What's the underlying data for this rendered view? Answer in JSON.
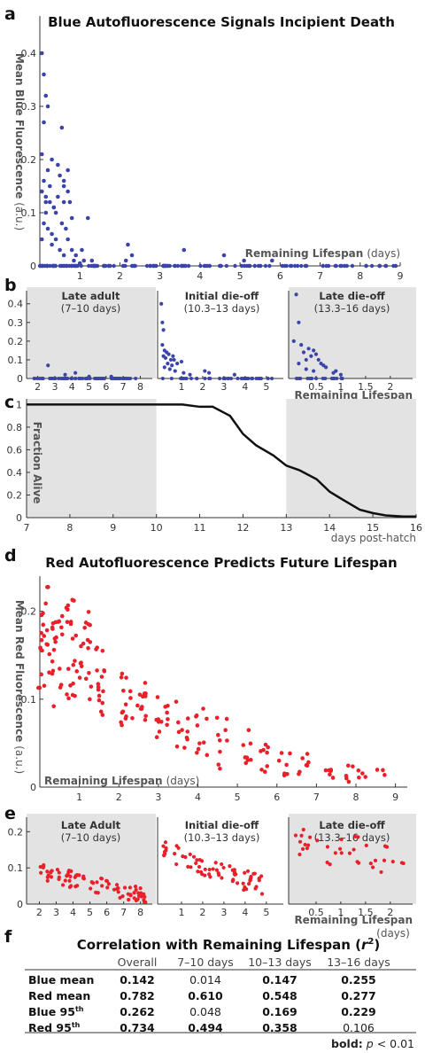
{
  "panel_a": {
    "letter": "a",
    "title": "Blue Autofluorescence Signals Incipient Death",
    "ylabel_bold": "Mean Blue Fluorescence",
    "ylabel_unit": "(a.u.)",
    "xlabel_bold": "Remaining Lifespan",
    "xlabel_unit": "(days)"
  },
  "panel_b": {
    "letter": "b",
    "sub1_title": "Late adult",
    "sub1_range": "(7–10 days)",
    "sub2_title": "Initial die-off",
    "sub2_range": "(10.3–13 days)",
    "sub3_title": "Late die-off",
    "sub3_range": "(13.3–16 days)",
    "xlabel_bold": "Remaining Lifespan",
    "xlabel_unit": "(days)"
  },
  "panel_c": {
    "letter": "c",
    "ylabel": "Fraction Alive",
    "xlabel": "days post-hatch"
  },
  "panel_d": {
    "letter": "d",
    "title": "Red Autofluorescence Predicts Future Lifespan",
    "ylabel_bold": "Mean Red Fluorescence",
    "ylabel_unit": "(a.u.)",
    "xlabel_bold": "Remaining Lifespan",
    "xlabel_unit": "(days)"
  },
  "panel_e": {
    "letter": "e",
    "sub1_title": "Late Adult",
    "sub1_range": "(7–10 days)",
    "sub2_title": "Initial die-off",
    "sub2_range": "(10.3–13 days)",
    "sub3_title": "Late die-off",
    "sub3_range": "(13.3–16 days)",
    "xlabel_bold": "Remaining Lifespan",
    "xlabel_unit": "(days)"
  },
  "panel_f": {
    "letter": "f",
    "title": "Correlation with Remaining Lifespan (",
    "title_r": "r",
    "title_sup": "2",
    "title_close": ")",
    "columns": [
      "Overall",
      "7–10 days",
      "10–13 days",
      "13–16 days"
    ],
    "rows": [
      {
        "label": "Blue mean",
        "sup": "",
        "values": [
          "0.142",
          "0.014",
          "0.147",
          "0.255"
        ],
        "bold": [
          true,
          false,
          true,
          true
        ]
      },
      {
        "label": "Red mean",
        "sup": "",
        "values": [
          "0.782",
          "0.610",
          "0.548",
          "0.277"
        ],
        "bold": [
          true,
          true,
          true,
          true
        ]
      },
      {
        "label": "Blue 95",
        "sup": "th",
        "values": [
          "0.262",
          "0.048",
          "0.169",
          "0.229"
        ],
        "bold": [
          true,
          false,
          true,
          true
        ]
      },
      {
        "label": "Red 95",
        "sup": "th",
        "values": [
          "0.734",
          "0.494",
          "0.358",
          "0.106"
        ],
        "bold": [
          true,
          true,
          true,
          false
        ]
      }
    ],
    "footnote_bold": "bold:",
    "footnote_p": "p",
    "footnote_rest": " < 0.01"
  },
  "colors": {
    "blue": "#3b44a8",
    "red": "#e8202a",
    "gray": "#e3e3e3",
    "line": "#111111"
  },
  "chart_data": [
    {
      "id": "a",
      "type": "scatter",
      "title": "Blue Autofluorescence Signals Incipient Death",
      "xlabel": "Remaining Lifespan (days)",
      "ylabel": "Mean Blue Fluorescence (a.u.)",
      "xlim": [
        0,
        9
      ],
      "ylim": [
        0,
        0.47
      ],
      "xticks": [
        1,
        2,
        3,
        4,
        5,
        6,
        7,
        8,
        9
      ],
      "yticks": [
        0,
        0.1,
        0.2,
        0.3,
        0.4
      ],
      "ytick_labels": [
        "0",
        "0.1",
        "0.2",
        "0.3",
        "0.4"
      ],
      "points": [
        [
          0.05,
          0.4
        ],
        [
          0.1,
          0.36
        ],
        [
          0.15,
          0.32
        ],
        [
          0.1,
          0.27
        ],
        [
          0.2,
          0.3
        ],
        [
          0.55,
          0.26
        ],
        [
          0.3,
          0.2
        ],
        [
          0.05,
          0.21
        ],
        [
          0.1,
          0.16
        ],
        [
          0.2,
          0.18
        ],
        [
          0.05,
          0.14
        ],
        [
          0.15,
          0.13
        ],
        [
          0.25,
          0.12
        ],
        [
          0.35,
          0.11
        ],
        [
          0.45,
          0.19
        ],
        [
          0.5,
          0.17
        ],
        [
          0.6,
          0.16
        ],
        [
          0.7,
          0.18
        ],
        [
          0.4,
          0.1
        ],
        [
          0.6,
          0.12
        ],
        [
          0.75,
          0.12
        ],
        [
          0.8,
          0.09
        ],
        [
          0.55,
          0.08
        ],
        [
          0.65,
          0.07
        ],
        [
          0.3,
          0.06
        ],
        [
          0.4,
          0.05
        ],
        [
          0.7,
          0.05
        ],
        [
          0.1,
          0.08
        ],
        [
          0.2,
          0.07
        ],
        [
          0.3,
          0.04
        ],
        [
          0.5,
          0.03
        ],
        [
          0.6,
          0.02
        ],
        [
          0.8,
          0.03
        ],
        [
          0.9,
          0.02
        ],
        [
          1.1,
          0.01
        ],
        [
          1.2,
          0.09
        ],
        [
          1.3,
          0.01
        ],
        [
          0.15,
          0.1
        ],
        [
          0.25,
          0.15
        ],
        [
          0.05,
          0.05
        ],
        [
          0.7,
          0.14
        ],
        [
          1.05,
          0.03
        ],
        [
          2.2,
          0.04
        ],
        [
          2.3,
          0.02
        ],
        [
          2.15,
          0.01
        ],
        [
          3.6,
          0.03
        ],
        [
          4.6,
          0.02
        ],
        [
          5.1,
          0.01
        ],
        [
          5.8,
          0.01
        ],
        [
          0.35,
          0.11
        ],
        [
          0.15,
          0.12
        ],
        [
          0.6,
          0.15
        ],
        [
          0.85,
          0.01
        ],
        [
          1.0,
          0.005
        ],
        [
          0.45,
          0.13
        ]
      ],
      "baseline_points_note": "many points at 0"
    },
    {
      "id": "b",
      "type": "scatter",
      "subplots": [
        {
          "title": "Late adult",
          "range": "(7–10 days)",
          "xticks": [
            2,
            3,
            4,
            5,
            6,
            7,
            8
          ],
          "xlim": [
            1.5,
            8.7
          ],
          "points": [
            [
              2.6,
              0.07
            ],
            [
              3.6,
              0.02
            ],
            [
              4.2,
              0.03
            ],
            [
              5.0,
              0.01
            ],
            [
              6.3,
              0.01
            ]
          ]
        },
        {
          "title": "Initial die-off",
          "range": "(10.3–13 days)",
          "xticks": [
            1,
            2,
            3,
            4,
            5
          ],
          "xlim": [
            0,
            5.8
          ],
          "points": [
            [
              0.05,
              0.4
            ],
            [
              0.1,
              0.3
            ],
            [
              0.15,
              0.26
            ],
            [
              0.1,
              0.18
            ],
            [
              0.2,
              0.15
            ],
            [
              0.3,
              0.14
            ],
            [
              0.4,
              0.13
            ],
            [
              0.25,
              0.11
            ],
            [
              0.5,
              0.1
            ],
            [
              0.6,
              0.12
            ],
            [
              0.35,
              0.08
            ],
            [
              0.55,
              0.07
            ],
            [
              0.8,
              0.08
            ],
            [
              1.0,
              0.09
            ],
            [
              1.1,
              0.03
            ],
            [
              0.7,
              0.04
            ],
            [
              0.45,
              0.05
            ],
            [
              2.1,
              0.04
            ],
            [
              2.3,
              0.03
            ],
            [
              0.2,
              0.06
            ],
            [
              0.65,
              0.1
            ],
            [
              0.15,
              0.12
            ],
            [
              3.5,
              0.02
            ],
            [
              1.4,
              0.02
            ]
          ]
        },
        {
          "title": "Late die-off",
          "range": "(13.3–16 days)",
          "xticks": [
            0.5,
            1,
            1.5,
            2
          ],
          "xticks_labels": [
            "0.5",
            "1",
            "1.5",
            "2"
          ],
          "xlim": [
            0,
            2.45
          ],
          "points": [
            [
              0.1,
              0.45
            ],
            [
              0.15,
              0.3
            ],
            [
              0.05,
              0.2
            ],
            [
              0.2,
              0.18
            ],
            [
              0.25,
              0.14
            ],
            [
              0.3,
              0.1
            ],
            [
              0.35,
              0.16
            ],
            [
              0.4,
              0.12
            ],
            [
              0.45,
              0.15
            ],
            [
              0.5,
              0.13
            ],
            [
              0.55,
              0.1
            ],
            [
              0.6,
              0.08
            ],
            [
              0.65,
              0.07
            ],
            [
              0.7,
              0.06
            ],
            [
              0.15,
              0.08
            ],
            [
              0.3,
              0.05
            ],
            [
              0.45,
              0.04
            ],
            [
              0.85,
              0.03
            ],
            [
              0.9,
              0.04
            ],
            [
              1.0,
              0.02
            ]
          ]
        }
      ],
      "ylim": [
        0,
        0.47
      ],
      "yticks": [
        0,
        0.1,
        0.2,
        0.3,
        0.4
      ],
      "xlabel": "Remaining Lifespan (days)"
    },
    {
      "id": "c",
      "type": "line",
      "ylabel": "Fraction Alive",
      "xlabel": "days post-hatch",
      "xlim": [
        7,
        16
      ],
      "ylim": [
        0,
        1.05
      ],
      "xticks": [
        7,
        8,
        9,
        10,
        11,
        12,
        13,
        14,
        15,
        16
      ],
      "yticks": [
        0,
        0.2,
        0.4,
        0.6,
        0.8,
        1
      ],
      "x": [
        7,
        10,
        10.6,
        11,
        11.3,
        11.7,
        12,
        12.3,
        12.7,
        13,
        13.3,
        13.7,
        14,
        14.3,
        14.7,
        15,
        15.3,
        15.7,
        16
      ],
      "y": [
        1,
        1,
        1,
        0.98,
        0.98,
        0.9,
        0.74,
        0.64,
        0.55,
        0.46,
        0.42,
        0.34,
        0.23,
        0.16,
        0.07,
        0.04,
        0.02,
        0.01,
        0.01
      ],
      "shaded_x_ranges": [
        [
          7,
          10
        ],
        [
          13,
          16
        ]
      ]
    },
    {
      "id": "d",
      "type": "scatter",
      "title": "Red Autofluorescence Predicts Future Lifespan",
      "xlabel": "Remaining Lifespan (days)",
      "ylabel": "Mean Red Fluorescence (a.u.)",
      "xlim": [
        0,
        9.3
      ],
      "ylim": [
        0,
        0.24
      ],
      "xticks": [
        1,
        2,
        3,
        4,
        5,
        6,
        7,
        8,
        9
      ],
      "yticks": [
        0,
        0.1,
        0.2
      ],
      "generated_note": "values clustered by column; decreasing trend",
      "clusters": [
        {
          "x": 0.1,
          "ymin": 0.11,
          "ymax": 0.23,
          "n": 22
        },
        {
          "x": 0.45,
          "ymin": 0.09,
          "ymax": 0.2,
          "n": 20
        },
        {
          "x": 0.8,
          "ymin": 0.1,
          "ymax": 0.22,
          "n": 20
        },
        {
          "x": 1.15,
          "ymin": 0.1,
          "ymax": 0.2,
          "n": 18
        },
        {
          "x": 1.55,
          "ymin": 0.08,
          "ymax": 0.16,
          "n": 16
        },
        {
          "x": 2.2,
          "ymin": 0.07,
          "ymax": 0.13,
          "n": 14
        },
        {
          "x": 2.6,
          "ymin": 0.06,
          "ymax": 0.12,
          "n": 12
        },
        {
          "x": 3.1,
          "ymin": 0.05,
          "ymax": 0.11,
          "n": 12
        },
        {
          "x": 3.6,
          "ymin": 0.04,
          "ymax": 0.1,
          "n": 10
        },
        {
          "x": 4.1,
          "ymin": 0.03,
          "ymax": 0.09,
          "n": 10
        },
        {
          "x": 4.6,
          "ymin": 0.02,
          "ymax": 0.08,
          "n": 9
        },
        {
          "x": 5.2,
          "ymin": 0.02,
          "ymax": 0.065,
          "n": 8
        },
        {
          "x": 5.7,
          "ymin": 0.015,
          "ymax": 0.05,
          "n": 8
        },
        {
          "x": 6.2,
          "ymin": 0.01,
          "ymax": 0.045,
          "n": 7
        },
        {
          "x": 6.7,
          "ymin": 0.01,
          "ymax": 0.04,
          "n": 7
        },
        {
          "x": 7.3,
          "ymin": 0.005,
          "ymax": 0.035,
          "n": 6
        },
        {
          "x": 7.8,
          "ymin": 0.005,
          "ymax": 0.03,
          "n": 5
        },
        {
          "x": 8.2,
          "ymin": 0.005,
          "ymax": 0.025,
          "n": 4
        },
        {
          "x": 8.6,
          "ymin": 0.01,
          "ymax": 0.02,
          "n": 3
        }
      ]
    },
    {
      "id": "e",
      "type": "scatter",
      "ylim": [
        0,
        0.24
      ],
      "yticks": [
        0,
        0.1,
        0.2
      ],
      "xlabel": "Remaining Lifespan (days)",
      "subplots": [
        {
          "title": "Late Adult",
          "range": "(7–10 days)",
          "xticks": [
            2,
            3,
            4,
            5,
            6,
            7,
            8
          ],
          "xlim": [
            1.4,
            8.7
          ],
          "trend": {
            "x0": 2,
            "y0": 0.09,
            "x1": 8.3,
            "y1": 0.02,
            "n": 80,
            "spread": 0.025
          }
        },
        {
          "title": "Initial die-off",
          "range": "(10.3–13 days)",
          "xticks": [
            1,
            2,
            3,
            4,
            5
          ],
          "xlim": [
            0,
            5.8
          ],
          "trend": {
            "x0": 0.1,
            "y0": 0.15,
            "x1": 4.8,
            "y1": 0.05,
            "n": 70,
            "spread": 0.03
          }
        },
        {
          "title": "Late die-off",
          "range": "(13.3–16 days)",
          "xticks": [
            0.5,
            1,
            1.5,
            2
          ],
          "xlim": [
            0,
            2.45
          ],
          "trend": {
            "x0": 0.05,
            "y0": 0.17,
            "x1": 2.3,
            "y1": 0.12,
            "n": 35,
            "spread": 0.045
          }
        }
      ]
    }
  ]
}
